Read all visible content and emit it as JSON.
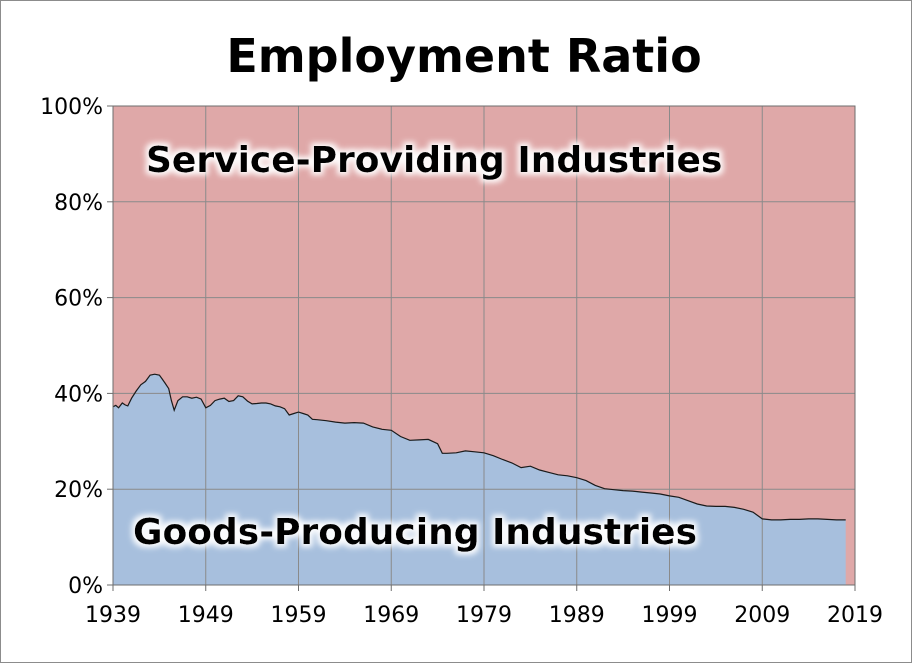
{
  "chart_data": {
    "type": "area",
    "title": "Employment Ratio",
    "xlabel": "",
    "ylabel": "",
    "xlim": [
      1939,
      2019
    ],
    "ylim": [
      0,
      100
    ],
    "x_ticks": [
      "1939",
      "1949",
      "1959",
      "1969",
      "1979",
      "1989",
      "1999",
      "2009",
      "2019"
    ],
    "y_ticks": [
      "0%",
      "20%",
      "40%",
      "60%",
      "80%",
      "100%"
    ],
    "grid": true,
    "annotations": {
      "top": "Service-Providing Industries",
      "bottom": "Goods-Producing Industries"
    },
    "series": [
      {
        "name": "Goods-Producing Industries",
        "color": "#a7bfdd",
        "x": [
          1939,
          1939.3,
          1939.6,
          1940,
          1940.3,
          1940.6,
          1941,
          1941.5,
          1942,
          1942.5,
          1943,
          1943.5,
          1944,
          1944.3,
          1944.6,
          1945,
          1945.3,
          1945.6,
          1946,
          1946.5,
          1947,
          1947.5,
          1948,
          1948.5,
          1949,
          1949.5,
          1950,
          1950.5,
          1951,
          1951.5,
          1952,
          1952.5,
          1953,
          1953.5,
          1954,
          1954.5,
          1955,
          1955.5,
          1956,
          1956.5,
          1957,
          1957.5,
          1958,
          1958.5,
          1959,
          1959.5,
          1960,
          1960.5,
          1961,
          1962,
          1963,
          1964,
          1965,
          1966,
          1967,
          1968,
          1969,
          1970,
          1971,
          1972,
          1973,
          1974,
          1974.5,
          1975,
          1976,
          1977,
          1978,
          1979,
          1980,
          1981,
          1982,
          1983,
          1984,
          1985,
          1986,
          1987,
          1988,
          1989,
          1990,
          1991,
          1992,
          1993,
          1994,
          1995,
          1996,
          1997,
          1998,
          1999,
          2000,
          2001,
          2002,
          2003,
          2004,
          2005,
          2006,
          2007,
          2008,
          2009,
          2010,
          2011,
          2012,
          2013,
          2014,
          2015,
          2016,
          2017,
          2018
        ],
        "values": [
          37.2,
          37.5,
          37.0,
          38.0,
          37.6,
          37.4,
          39.0,
          40.5,
          41.8,
          42.5,
          43.8,
          44.0,
          43.8,
          43.0,
          42.2,
          41.0,
          38.5,
          36.5,
          38.5,
          39.3,
          39.3,
          39.0,
          39.2,
          38.8,
          37.0,
          37.5,
          38.5,
          38.8,
          39.0,
          38.3,
          38.5,
          39.5,
          39.3,
          38.4,
          37.8,
          37.9,
          38.0,
          38.0,
          37.8,
          37.4,
          37.2,
          36.8,
          35.5,
          35.8,
          36.1,
          35.8,
          35.5,
          34.6,
          34.5,
          34.3,
          34.0,
          33.8,
          33.9,
          33.8,
          33.0,
          32.5,
          32.3,
          31.0,
          30.2,
          30.3,
          30.4,
          29.5,
          27.5,
          27.5,
          27.6,
          28.0,
          27.8,
          27.6,
          27.0,
          26.2,
          25.5,
          24.5,
          24.8,
          24.0,
          23.5,
          23.0,
          22.8,
          22.4,
          21.8,
          20.8,
          20.1,
          19.9,
          19.7,
          19.6,
          19.4,
          19.2,
          19.0,
          18.6,
          18.3,
          17.6,
          16.9,
          16.5,
          16.4,
          16.4,
          16.2,
          15.8,
          15.2,
          13.8,
          13.6,
          13.6,
          13.7,
          13.7,
          13.8,
          13.8,
          13.7,
          13.6,
          13.6
        ]
      },
      {
        "name": "Service-Providing Industries",
        "color": "#dfa8a8"
      }
    ]
  }
}
